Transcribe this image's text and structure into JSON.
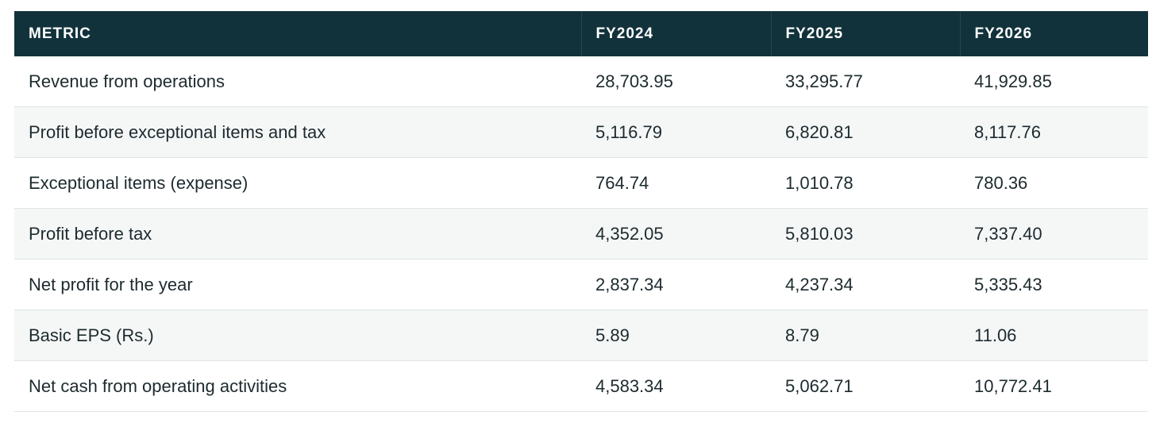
{
  "table": {
    "header": [
      "METRIC",
      "FY2024",
      "FY2025",
      "FY2026"
    ],
    "rows": [
      [
        "Revenue from operations",
        "28,703.95",
        "33,295.77",
        "41,929.85"
      ],
      [
        "Profit before exceptional items and tax",
        "5,116.79",
        "6,820.81",
        "8,117.76"
      ],
      [
        "Exceptional items (expense)",
        "764.74",
        "1,010.78",
        "780.36"
      ],
      [
        "Profit before tax",
        "4,352.05",
        "5,810.03",
        "7,337.40"
      ],
      [
        "Net profit for the year",
        "2,837.34",
        "4,237.34",
        "5,335.43"
      ],
      [
        "Basic EPS (Rs.)",
        "5.89",
        "8.79",
        "11.06"
      ],
      [
        "Net cash from operating activities",
        "4,583.34",
        "5,062.71",
        "10,772.41"
      ]
    ]
  }
}
